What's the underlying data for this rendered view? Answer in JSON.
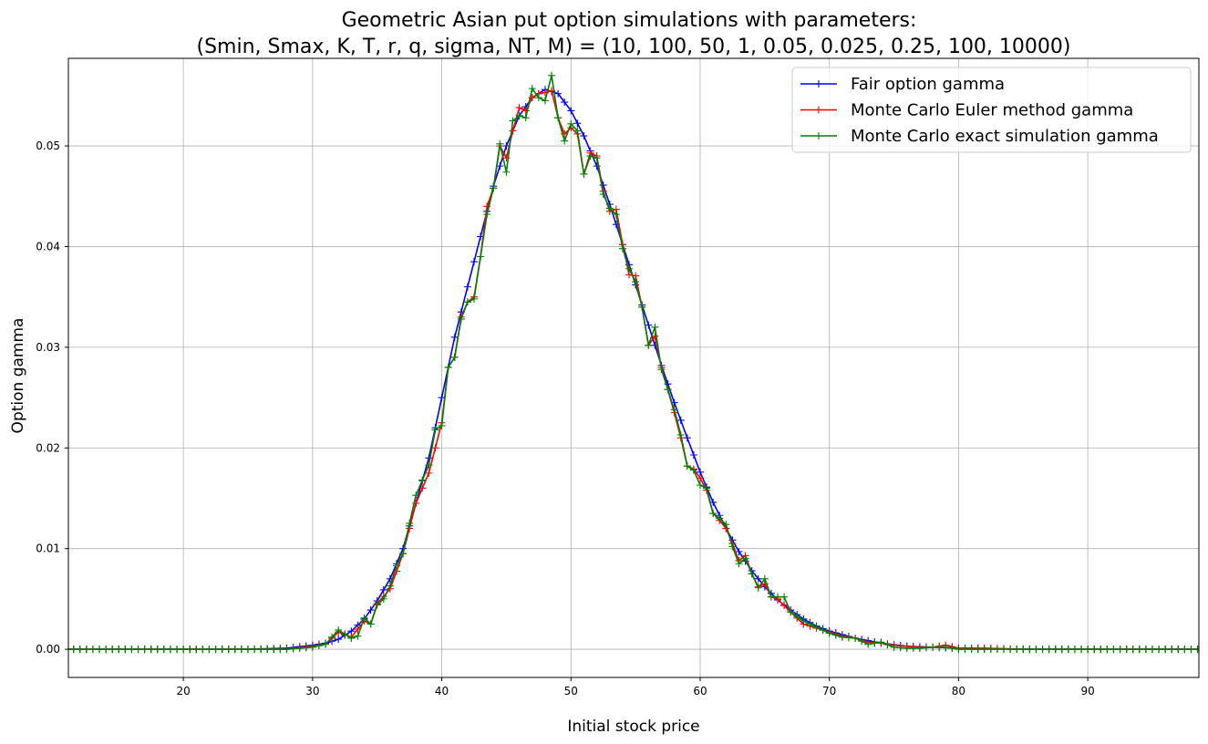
{
  "chart_data": {
    "type": "line",
    "title": "Geometric Asian put option simulations with parameters:",
    "subtitle": "(Smin, Smax, K, T, r, q, sigma, NT, M) = (10, 100, 50, 1, 0.05, 0.025, 0.25, 100, 10000)",
    "xlabel": "Initial stock price",
    "ylabel": "Option gamma",
    "xlim": [
      11.1,
      98.6
    ],
    "ylim": [
      -0.0028,
      0.0587
    ],
    "xticks": [
      20,
      30,
      40,
      50,
      60,
      70,
      80,
      90
    ],
    "yticks": [
      0.0,
      0.01,
      0.02,
      0.03,
      0.04,
      0.05
    ],
    "xtick_labels": [
      "20",
      "30",
      "40",
      "50",
      "60",
      "70",
      "80",
      "90"
    ],
    "ytick_labels": [
      "0.00",
      "0.01",
      "0.02",
      "0.03",
      "0.04",
      "0.05"
    ],
    "grid": true,
    "legend_position": "top-right",
    "marker": "+",
    "series": [
      {
        "name": "Fair option gamma",
        "color": "#0000ff",
        "points": [
          [
            11.0,
            0.0
          ],
          [
            25.0,
            0.0
          ],
          [
            28.0,
            0.0001
          ],
          [
            30.0,
            0.0004
          ],
          [
            31.0,
            0.0006
          ],
          [
            32.0,
            0.001
          ],
          [
            33.0,
            0.0018
          ],
          [
            34.0,
            0.003
          ],
          [
            35.0,
            0.0048
          ],
          [
            36.0,
            0.007
          ],
          [
            37.0,
            0.01
          ],
          [
            38.0,
            0.0145
          ],
          [
            39.0,
            0.019
          ],
          [
            40.0,
            0.025
          ],
          [
            41.0,
            0.031
          ],
          [
            42.0,
            0.036
          ],
          [
            43.0,
            0.041
          ],
          [
            44.0,
            0.046
          ],
          [
            45.0,
            0.05
          ],
          [
            46.0,
            0.053
          ],
          [
            47.0,
            0.0548
          ],
          [
            48.0,
            0.0556
          ],
          [
            49.0,
            0.0552
          ],
          [
            50.0,
            0.0535
          ],
          [
            51.0,
            0.051
          ],
          [
            52.0,
            0.048
          ],
          [
            53.0,
            0.0442
          ],
          [
            54.0,
            0.0402
          ],
          [
            55.0,
            0.0362
          ],
          [
            56.0,
            0.0322
          ],
          [
            57.0,
            0.0282
          ],
          [
            58.0,
            0.0245
          ],
          [
            59.0,
            0.021
          ],
          [
            60.0,
            0.0176
          ],
          [
            61.0,
            0.0146
          ],
          [
            62.0,
            0.012
          ],
          [
            63.0,
            0.0097
          ],
          [
            64.0,
            0.0078
          ],
          [
            65.0,
            0.0062
          ],
          [
            66.0,
            0.0049
          ],
          [
            67.0,
            0.0039
          ],
          [
            68.0,
            0.003
          ],
          [
            69.0,
            0.0023
          ],
          [
            70.0,
            0.0018
          ],
          [
            72.0,
            0.0011
          ],
          [
            74.0,
            0.0006
          ],
          [
            76.0,
            0.0003
          ],
          [
            78.0,
            0.0002
          ],
          [
            80.0,
            0.0001
          ],
          [
            85.0,
            0.0
          ],
          [
            98.6,
            0.0
          ]
        ]
      },
      {
        "name": "Monte Carlo Euler method gamma",
        "color": "#ff0000",
        "points": [
          [
            11.0,
            0.0
          ],
          [
            28.0,
            0.0
          ],
          [
            30.0,
            0.0003
          ],
          [
            31.0,
            0.0005
          ],
          [
            32.0,
            0.0017
          ],
          [
            33.0,
            0.0012
          ],
          [
            34.0,
            0.0028
          ],
          [
            34.5,
            0.0025
          ],
          [
            35.0,
            0.0045
          ],
          [
            36.0,
            0.006
          ],
          [
            37.0,
            0.0095
          ],
          [
            38.0,
            0.0145
          ],
          [
            39.0,
            0.0175
          ],
          [
            40.0,
            0.0225
          ],
          [
            40.5,
            0.028
          ],
          [
            41.0,
            0.029
          ],
          [
            41.5,
            0.033
          ],
          [
            42.0,
            0.0345
          ],
          [
            42.5,
            0.035
          ],
          [
            43.0,
            0.039
          ],
          [
            43.5,
            0.044
          ],
          [
            44.0,
            0.0458
          ],
          [
            44.5,
            0.05
          ],
          [
            45.0,
            0.0488
          ],
          [
            45.5,
            0.0515
          ],
          [
            46.0,
            0.0538
          ],
          [
            46.5,
            0.0535
          ],
          [
            47.0,
            0.0548
          ],
          [
            47.5,
            0.0552
          ],
          [
            48.0,
            0.0553
          ],
          [
            48.5,
            0.0555
          ],
          [
            49.0,
            0.0528
          ],
          [
            49.5,
            0.0512
          ],
          [
            50.0,
            0.0518
          ],
          [
            50.5,
            0.0512
          ],
          [
            51.0,
            0.0472
          ],
          [
            51.5,
            0.0493
          ],
          [
            52.0,
            0.049
          ],
          [
            52.5,
            0.0455
          ],
          [
            53.0,
            0.0435
          ],
          [
            53.5,
            0.0437
          ],
          [
            54.0,
            0.0402
          ],
          [
            54.5,
            0.0372
          ],
          [
            55.0,
            0.0371
          ],
          [
            55.5,
            0.034
          ],
          [
            56.0,
            0.0302
          ],
          [
            56.5,
            0.0311
          ],
          [
            57.0,
            0.028
          ],
          [
            57.5,
            0.0258
          ],
          [
            58.0,
            0.0235
          ],
          [
            58.5,
            0.021
          ],
          [
            59.0,
            0.0182
          ],
          [
            59.5,
            0.0179
          ],
          [
            60.0,
            0.017
          ],
          [
            60.5,
            0.0158
          ],
          [
            61.0,
            0.0135
          ],
          [
            61.5,
            0.0128
          ],
          [
            62.0,
            0.012
          ],
          [
            62.5,
            0.0105
          ],
          [
            63.0,
            0.0088
          ],
          [
            63.5,
            0.0093
          ],
          [
            64.0,
            0.0075
          ],
          [
            64.5,
            0.0062
          ],
          [
            65.0,
            0.0065
          ],
          [
            65.5,
            0.0052
          ],
          [
            66.0,
            0.005
          ],
          [
            67.0,
            0.0037
          ],
          [
            68.0,
            0.0025
          ],
          [
            69.0,
            0.0021
          ],
          [
            70.0,
            0.0017
          ],
          [
            71.0,
            0.0013
          ],
          [
            72.0,
            0.0011
          ],
          [
            73.0,
            0.0007
          ],
          [
            74.0,
            0.0006
          ],
          [
            75.0,
            0.0004
          ],
          [
            76.0,
            0.0003
          ],
          [
            77.0,
            0.0002
          ],
          [
            78.0,
            0.0002
          ],
          [
            79.0,
            0.0004
          ],
          [
            80.0,
            0.0001
          ],
          [
            82.0,
            0.0001
          ],
          [
            85.0,
            0.0
          ],
          [
            98.6,
            0.0
          ]
        ]
      },
      {
        "name": "Monte Carlo exact simulation gamma",
        "color": "#008000",
        "points": [
          [
            11.0,
            0.0
          ],
          [
            28.0,
            0.0
          ],
          [
            30.0,
            0.0002
          ],
          [
            31.0,
            0.0005
          ],
          [
            32.0,
            0.0019
          ],
          [
            32.5,
            0.0015
          ],
          [
            33.0,
            0.0011
          ],
          [
            33.5,
            0.0013
          ],
          [
            34.0,
            0.0031
          ],
          [
            34.5,
            0.0025
          ],
          [
            35.0,
            0.0044
          ],
          [
            35.5,
            0.005
          ],
          [
            36.0,
            0.0063
          ],
          [
            36.5,
            0.0083
          ],
          [
            37.0,
            0.0095
          ],
          [
            37.5,
            0.0125
          ],
          [
            38.0,
            0.0153
          ],
          [
            38.5,
            0.0168
          ],
          [
            39.0,
            0.0183
          ],
          [
            39.5,
            0.0218
          ],
          [
            40.0,
            0.0222
          ],
          [
            40.5,
            0.028
          ],
          [
            41.0,
            0.029
          ],
          [
            41.5,
            0.0328
          ],
          [
            42.0,
            0.0345
          ],
          [
            42.5,
            0.0348
          ],
          [
            43.0,
            0.039
          ],
          [
            43.5,
            0.0432
          ],
          [
            44.0,
            0.0458
          ],
          [
            44.5,
            0.0502
          ],
          [
            45.0,
            0.0474
          ],
          [
            45.5,
            0.0525
          ],
          [
            46.0,
            0.053
          ],
          [
            46.5,
            0.0528
          ],
          [
            47.0,
            0.0557
          ],
          [
            47.5,
            0.0548
          ],
          [
            48.0,
            0.0545
          ],
          [
            48.5,
            0.057
          ],
          [
            49.0,
            0.0528
          ],
          [
            49.5,
            0.0505
          ],
          [
            50.0,
            0.0522
          ],
          [
            50.5,
            0.0515
          ],
          [
            51.0,
            0.0472
          ],
          [
            51.5,
            0.049
          ],
          [
            52.0,
            0.0488
          ],
          [
            52.5,
            0.0452
          ],
          [
            53.0,
            0.0438
          ],
          [
            53.5,
            0.0432
          ],
          [
            54.0,
            0.0398
          ],
          [
            54.5,
            0.0378
          ],
          [
            55.0,
            0.0365
          ],
          [
            55.5,
            0.034
          ],
          [
            56.0,
            0.0302
          ],
          [
            56.5,
            0.032
          ],
          [
            57.0,
            0.0278
          ],
          [
            57.5,
            0.0258
          ],
          [
            58.0,
            0.0238
          ],
          [
            58.5,
            0.0213
          ],
          [
            59.0,
            0.0182
          ],
          [
            59.5,
            0.0178
          ],
          [
            60.0,
            0.0163
          ],
          [
            60.5,
            0.016
          ],
          [
            61.0,
            0.0135
          ],
          [
            61.5,
            0.013
          ],
          [
            62.0,
            0.0124
          ],
          [
            62.5,
            0.0102
          ],
          [
            63.0,
            0.0085
          ],
          [
            63.5,
            0.009
          ],
          [
            64.0,
            0.0075
          ],
          [
            64.5,
            0.0061
          ],
          [
            65.0,
            0.007
          ],
          [
            65.5,
            0.0052
          ],
          [
            66.0,
            0.0052
          ],
          [
            66.5,
            0.0052
          ],
          [
            67.0,
            0.0037
          ],
          [
            68.0,
            0.0028
          ],
          [
            69.0,
            0.0022
          ],
          [
            70.0,
            0.0016
          ],
          [
            71.0,
            0.0012
          ],
          [
            72.0,
            0.0011
          ],
          [
            73.0,
            0.0005
          ],
          [
            74.0,
            0.0007
          ],
          [
            75.0,
            0.0002
          ],
          [
            76.0,
            0.0001
          ],
          [
            77.0,
            0.0001
          ],
          [
            78.0,
            0.0002
          ],
          [
            79.0,
            0.0002
          ],
          [
            80.0,
            0.0
          ],
          [
            85.0,
            0.0
          ],
          [
            98.6,
            0.0
          ]
        ]
      }
    ]
  }
}
